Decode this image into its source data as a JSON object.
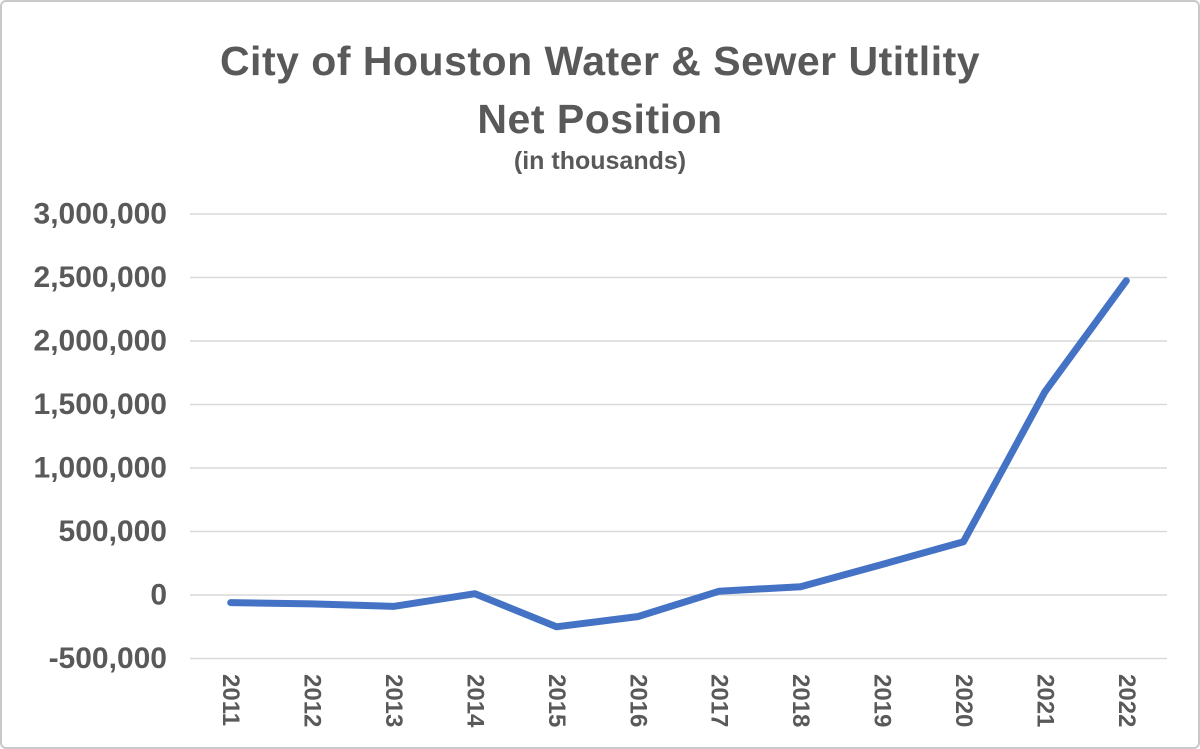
{
  "chart": {
    "title_line1": "City of Houston Water & Sewer Utitlity",
    "title_line2": "Net Position",
    "subtitle": "(in thousands)"
  },
  "chart_data": {
    "type": "line",
    "title": "City of Houston Water & Sewer Utitlity Net Position",
    "subtitle": "(in thousands)",
    "categories": [
      "2011",
      "2012",
      "2013",
      "2014",
      "2015",
      "2016",
      "2017",
      "2018",
      "2019",
      "2020",
      "2021",
      "2022"
    ],
    "series": [
      {
        "name": "Net Position (in thousands)",
        "values": [
          -60000,
          -70000,
          -90000,
          10000,
          -250000,
          -170000,
          30000,
          65000,
          240000,
          420000,
          1600000,
          2475000
        ]
      }
    ],
    "xlabel": "",
    "ylabel": "",
    "ylim": [
      -500000,
      3000000
    ],
    "y_ticks": [
      3000000,
      2500000,
      2000000,
      1500000,
      1000000,
      500000,
      0,
      -500000
    ],
    "y_tick_labels": [
      "3,000,000",
      "2,500,000",
      "2,000,000",
      "1,500,000",
      "1,000,000",
      "500,000",
      "0",
      "-500,000"
    ],
    "grid": "horizontal",
    "legend": "none",
    "line_color": "#4472C4",
    "gridline_color": "#D9D9D9",
    "label_color": "#595959"
  }
}
